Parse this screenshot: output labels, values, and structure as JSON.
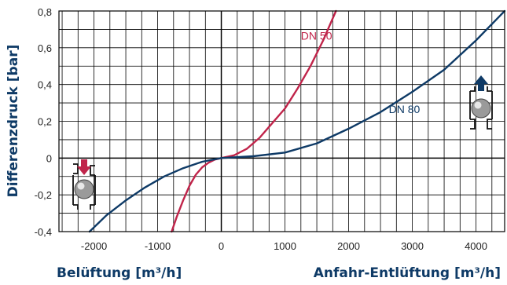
{
  "chart_data": {
    "type": "line",
    "title": "",
    "ylabel": "Differenzdruck [bar]",
    "xlabel_left": "Belüftung [m³/h]",
    "xlabel_right": "Anfahr-Entlüftung [m³/h]",
    "xlim": [
      -2550,
      4450
    ],
    "ylim": [
      -0.4,
      0.8
    ],
    "grid": true,
    "x_ticks": [
      -2000,
      -1000,
      0,
      1000,
      2000,
      3000,
      4000
    ],
    "x_tick_labels": [
      "-2000",
      "-1000",
      "0",
      "1000",
      "2000",
      "3000",
      "4000"
    ],
    "y_ticks": [
      -0.4,
      -0.2,
      0,
      0.2,
      0.4,
      0.6,
      0.8
    ],
    "y_tick_labels": [
      "-0,4",
      "-0,2",
      "0",
      "0,2",
      "0,4",
      "0,6",
      "0,8"
    ],
    "series": [
      {
        "name": "DN 50",
        "color": "#c0244a",
        "x": [
          -780,
          -700,
          -600,
          -500,
          -400,
          -300,
          -200,
          -100,
          0,
          200,
          400,
          600,
          800,
          1000,
          1200,
          1400,
          1600,
          1800
        ],
        "y": [
          -0.4,
          -0.32,
          -0.23,
          -0.15,
          -0.09,
          -0.05,
          -0.025,
          -0.008,
          0,
          0.015,
          0.05,
          0.11,
          0.19,
          0.27,
          0.38,
          0.5,
          0.64,
          0.8
        ]
      },
      {
        "name": "DN 80",
        "color": "#0e3a66",
        "x": [
          -2070,
          -1800,
          -1500,
          -1200,
          -900,
          -600,
          -300,
          0,
          500,
          1000,
          1500,
          2000,
          2500,
          3000,
          3500,
          4000,
          4450
        ],
        "y": [
          -0.4,
          -0.31,
          -0.23,
          -0.16,
          -0.1,
          -0.055,
          -0.02,
          0,
          0.01,
          0.03,
          0.08,
          0.16,
          0.25,
          0.36,
          0.48,
          0.64,
          0.8
        ]
      }
    ]
  }
}
